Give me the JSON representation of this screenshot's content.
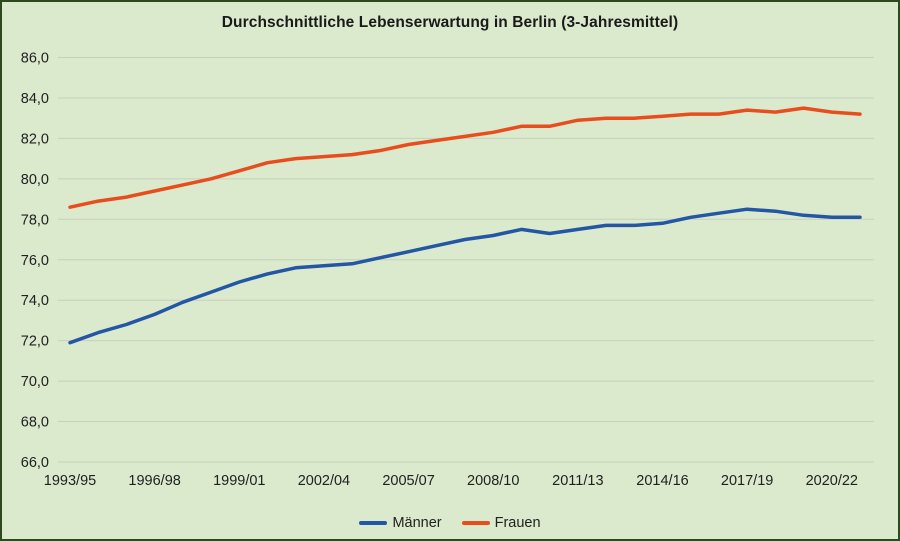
{
  "window": {
    "background_color": "#dbe9cd",
    "border_color": "#2c4a1d"
  },
  "chart_data": {
    "type": "line",
    "title": "Durchschnittliche Lebenserwartung in Berlin (3-Jahresmittel)",
    "categories": [
      "1993/95",
      "1994/96",
      "1995/97",
      "1996/98",
      "1997/99",
      "1998/00",
      "1999/01",
      "2000/02",
      "2001/03",
      "2002/04",
      "2003/05",
      "2004/06",
      "2005/07",
      "2006/08",
      "2007/09",
      "2008/10",
      "2009/11",
      "2010/12",
      "2011/13",
      "2012/14",
      "2013/15",
      "2014/16",
      "2015/17",
      "2016/18",
      "2017/19",
      "2018/20",
      "2019/21",
      "2020/22",
      "2021/23"
    ],
    "x_tick_labels": [
      "1993/95",
      "1996/98",
      "1999/01",
      "2002/04",
      "2005/07",
      "2008/10",
      "2011/13",
      "2014/16",
      "2017/19",
      "2020/22"
    ],
    "x_tick_every": 3,
    "series": [
      {
        "name": "Männer",
        "color": "#2356a5",
        "values": [
          71.9,
          72.4,
          72.8,
          73.3,
          73.9,
          74.4,
          74.9,
          75.3,
          75.6,
          75.7,
          75.8,
          76.1,
          76.4,
          76.7,
          77.0,
          77.2,
          77.5,
          77.3,
          77.5,
          77.7,
          77.7,
          77.8,
          78.1,
          78.3,
          78.5,
          78.4,
          78.2,
          78.1,
          78.1
        ]
      },
      {
        "name": "Frauen",
        "color": "#e84e1d",
        "values": [
          78.6,
          78.9,
          79.1,
          79.4,
          79.7,
          80.0,
          80.4,
          80.8,
          81.0,
          81.1,
          81.2,
          81.4,
          81.7,
          81.9,
          82.1,
          82.3,
          82.6,
          82.6,
          82.9,
          83.0,
          83.0,
          83.1,
          83.2,
          83.2,
          83.4,
          83.3,
          83.5,
          83.3,
          83.2
        ]
      }
    ],
    "ylim": [
      66,
      86
    ],
    "ytick_step": 2,
    "y_tick_labels": [
      "66,0",
      "68,0",
      "70,0",
      "72,0",
      "74,0",
      "76,0",
      "78,0",
      "80,0",
      "82,0",
      "84,0",
      "86,0"
    ],
    "grid": "horizontal",
    "legend_position": "bottom"
  }
}
